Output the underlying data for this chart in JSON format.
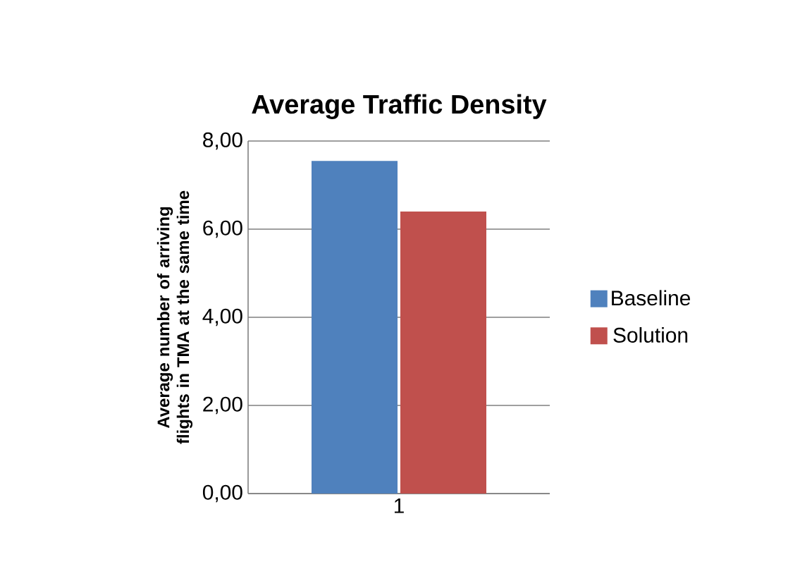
{
  "chart_data": {
    "type": "bar",
    "title": "Average Traffic Density",
    "ylabel": "Average number of arriving flights in TMA at the same time",
    "categories": [
      "1"
    ],
    "series": [
      {
        "name": "Baseline",
        "color": "#4f81bd",
        "values": [
          7.55
        ]
      },
      {
        "name": "Solution",
        "color": "#c0504d",
        "values": [
          6.4
        ]
      }
    ],
    "ylim": [
      0,
      8
    ],
    "yticks": [
      {
        "value": 0,
        "label": "0,00"
      },
      {
        "value": 2,
        "label": "2,00"
      },
      {
        "value": 4,
        "label": "4,00"
      },
      {
        "value": 6,
        "label": "6,00"
      },
      {
        "value": 8,
        "label": "8,00"
      }
    ],
    "grid": "y",
    "legend": "right"
  }
}
